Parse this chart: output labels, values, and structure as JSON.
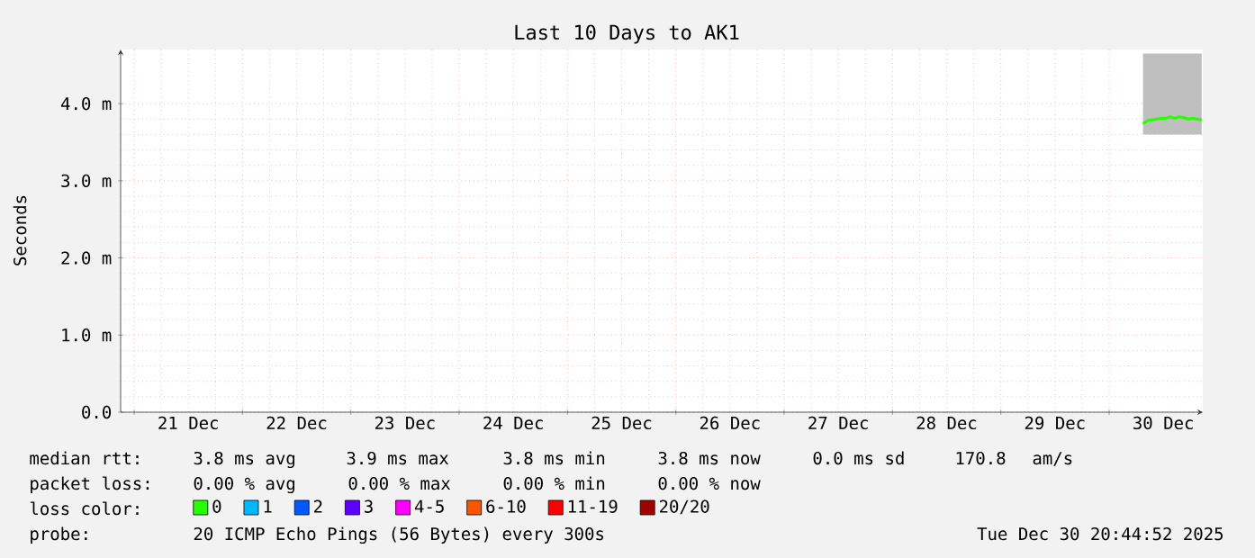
{
  "chart_data": {
    "type": "line",
    "title": "Last 10 Days to AK1",
    "ylabel": "Seconds",
    "x": [
      "2025-12-30T07:30",
      "2025-12-30T08:30",
      "2025-12-30T09:30",
      "2025-12-30T10:30",
      "2025-12-30T11:30",
      "2025-12-30T12:30",
      "2025-12-30T13:30",
      "2025-12-30T14:30",
      "2025-12-30T15:30",
      "2025-12-30T16:30",
      "2025-12-30T17:30",
      "2025-12-30T18:30",
      "2025-12-30T19:30",
      "2025-12-30T20:30"
    ],
    "series": [
      {
        "name": "0",
        "color": "#26ff00",
        "values": [
          3.74,
          3.78,
          3.79,
          3.8,
          3.81,
          3.81,
          3.83,
          3.81,
          3.83,
          3.82,
          3.8,
          3.81,
          3.8,
          3.79
        ],
        "lower": [
          3.6,
          3.6,
          3.6,
          3.6,
          3.6,
          3.6,
          3.6,
          3.6,
          3.6,
          3.6,
          3.6,
          3.6,
          3.6,
          3.6
        ],
        "upper": [
          4.65,
          4.65,
          4.65,
          4.65,
          4.65,
          4.65,
          4.65,
          4.65,
          4.65,
          4.65,
          4.65,
          4.65,
          4.65,
          4.65
        ]
      },
      {
        "name": "1",
        "color": "#00b8ff",
        "values": [
          null,
          null,
          null,
          null,
          null,
          null,
          null,
          null,
          null,
          null,
          null,
          null,
          null,
          null
        ]
      },
      {
        "name": "2",
        "color": "#0059ff",
        "values": [
          null,
          null,
          null,
          null,
          null,
          null,
          null,
          null,
          null,
          null,
          null,
          null,
          null,
          null
        ]
      },
      {
        "name": "3",
        "color": "#5e00ff",
        "values": [
          null,
          null,
          null,
          null,
          null,
          null,
          null,
          null,
          null,
          null,
          null,
          null,
          null,
          null
        ]
      },
      {
        "name": "4-5",
        "color": "#ff00ff",
        "values": [
          null,
          null,
          null,
          null,
          null,
          null,
          null,
          null,
          null,
          null,
          null,
          null,
          null,
          null
        ]
      },
      {
        "name": "6-10",
        "color": "#ff5500",
        "values": [
          null,
          null,
          null,
          null,
          null,
          null,
          null,
          null,
          null,
          null,
          null,
          null,
          null,
          null
        ]
      },
      {
        "name": "11-19",
        "color": "#ff0000",
        "values": [
          null,
          null,
          null,
          null,
          null,
          null,
          null,
          null,
          null,
          null,
          null,
          null,
          null,
          null
        ]
      },
      {
        "name": "20/20",
        "color": "#a10000",
        "values": [
          null,
          null,
          null,
          null,
          null,
          null,
          null,
          null,
          null,
          null,
          null,
          null,
          null,
          null
        ]
      }
    ],
    "xlim": [
      "2025-12-20T21:00",
      "2025-12-30T20:45"
    ],
    "xticks": [
      {
        "value": "2025-12-21T00:00",
        "label": null
      },
      {
        "value": "2025-12-22T00:00",
        "label": null
      },
      {
        "value": "2025-12-23T00:00",
        "label": null
      },
      {
        "value": "2025-12-24T00:00",
        "label": null
      },
      {
        "value": "2025-12-25T00:00",
        "label": null
      },
      {
        "value": "2025-12-26T00:00",
        "label": null
      },
      {
        "value": "2025-12-27T00:00",
        "label": null
      },
      {
        "value": "2025-12-28T00:00",
        "label": null
      },
      {
        "value": "2025-12-29T00:00",
        "label": null
      },
      {
        "value": "2025-12-30T00:00",
        "label": null
      },
      {
        "value": "2025-12-21T12:00",
        "label": "21 Dec"
      },
      {
        "value": "2025-12-22T12:00",
        "label": "22 Dec"
      },
      {
        "value": "2025-12-23T12:00",
        "label": "23 Dec"
      },
      {
        "value": "2025-12-24T12:00",
        "label": "24 Dec"
      },
      {
        "value": "2025-12-25T12:00",
        "label": "25 Dec"
      },
      {
        "value": "2025-12-26T12:00",
        "label": "26 Dec"
      },
      {
        "value": "2025-12-27T12:00",
        "label": "27 Dec"
      },
      {
        "value": "2025-12-28T12:00",
        "label": "28 Dec"
      },
      {
        "value": "2025-12-29T12:00",
        "label": "29 Dec"
      },
      {
        "value": "2025-12-30T12:00",
        "label": "30 Dec"
      }
    ],
    "ylim": [
      0,
      4.7
    ],
    "yticks": [
      {
        "value": 0,
        "label": "0.0"
      },
      {
        "value": 1,
        "label": "1.0 m"
      },
      {
        "value": 2,
        "label": "2.0 m"
      },
      {
        "value": 3,
        "label": "3.0 m"
      },
      {
        "value": 4,
        "label": "4.0 m"
      }
    ],
    "grid": true,
    "legend": "bottom",
    "line_style": "solid",
    "annotations": [
      "median rtt:",
      "3.8 ms avg",
      "3.9 ms max",
      "3.8 ms min",
      "3.8 ms now",
      "0.0 ms sd",
      "170.8",
      "am/s",
      "packet loss:",
      "0.00 % avg",
      "0.00 % max",
      "0.00 % min",
      "0.00 % now",
      "loss color:",
      "probe:",
      "20 ICMP Echo Pings (56 Bytes) every 300s",
      "Tue Dec 30 20:44:52 2025"
    ]
  }
}
